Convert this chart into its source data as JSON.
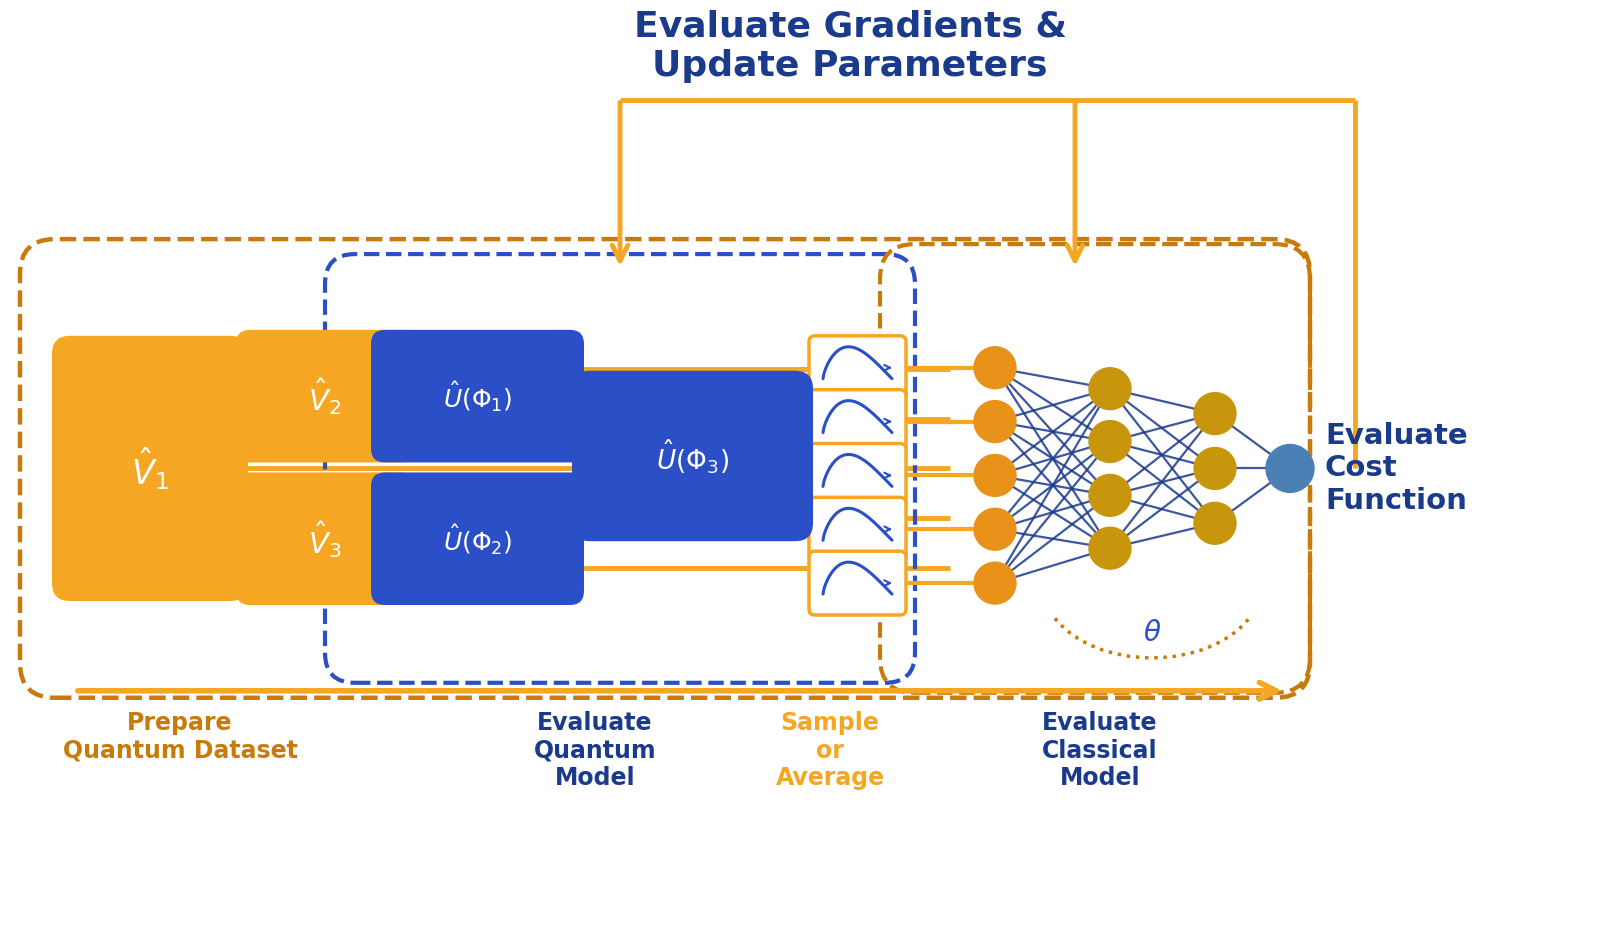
{
  "orange": "#F5A623",
  "orange_dark": "#C87A0A",
  "blue_dark": "#1A3A8C",
  "blue_med": "#2B4FC7",
  "blue_node_color": "#4A7CC7",
  "blue_final": "#4A80B4",
  "gold_node": "#C8960C",
  "orange_node": "#E8921A",
  "bg": "#FFFFFF",
  "title_text": "Evaluate Gradients &\nUpdate Parameters",
  "label1": "Prepare\nQuantum Dataset",
  "label2": "Evaluate\nQuantum\nModel",
  "label3": "Sample\nor\nAverage",
  "label4": "Evaluate\nClassical\nModel",
  "label5": "Evaluate\nCost\nFunction",
  "theta_label": "$\\theta$"
}
